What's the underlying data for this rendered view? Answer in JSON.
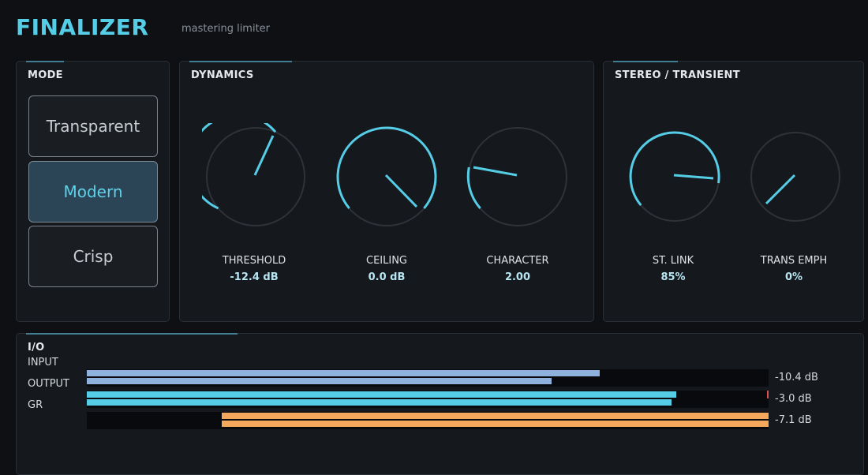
{
  "header": {
    "title": "FINALIZER",
    "subtitle": "mastering limiter"
  },
  "mode": {
    "title": "MODE",
    "options": [
      "Transparent",
      "Modern",
      "Crisp"
    ],
    "selected": "Modern"
  },
  "dynamics": {
    "title": "DYNAMICS",
    "knobs": [
      {
        "label": "THRESHOLD",
        "value": "-12.4 dB"
      },
      {
        "label": "CEILING",
        "value": "0.0 dB"
      },
      {
        "label": "CHARACTER",
        "value": "2.00"
      }
    ]
  },
  "stereo": {
    "title": "STEREO / TRANSIENT",
    "knobs": [
      {
        "label": "ST. LINK",
        "value": "85%"
      },
      {
        "label": "TRANS EMPH",
        "value": "0%"
      }
    ]
  },
  "io": {
    "title": "I/O",
    "labels": [
      "INPUT",
      "OUTPUT",
      "GR"
    ],
    "meters": [
      {
        "name": "input",
        "left_level": 0.752,
        "right_level": 0.682,
        "readout": "-10.4 dB",
        "color": "#8fb1dd"
      },
      {
        "name": "output",
        "left_level": 0.865,
        "right_level": 0.858,
        "readout": "-3.0 dB",
        "color": "#56cde6",
        "peak_color": "#e05050"
      },
      {
        "name": "gr",
        "left_level": 0.802,
        "right_level": 0.802,
        "readout": "-7.1 dB",
        "color": "#f4a85c"
      }
    ]
  },
  "colors": {
    "accent": "#56cde6",
    "knob_track": "#2f3338",
    "panel_bg": "#15181d",
    "page_bg": "#0e1014"
  }
}
